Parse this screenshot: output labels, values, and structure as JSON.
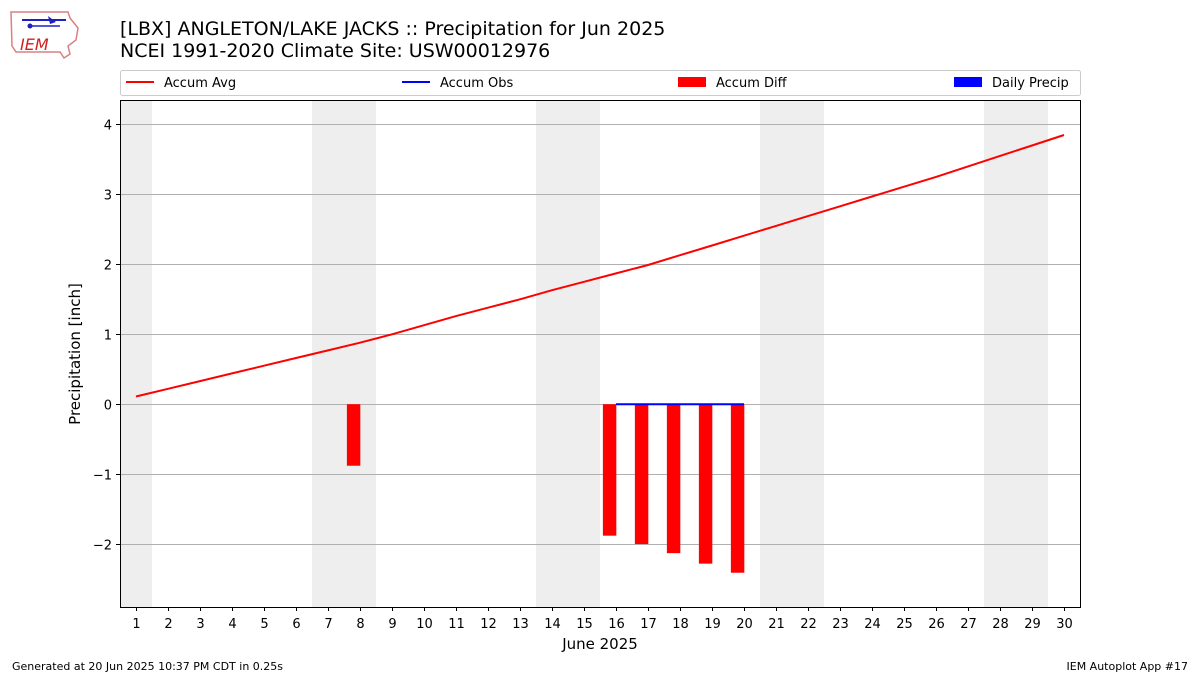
{
  "header": {
    "title_line1": "[LBX] ANGLETON/LAKE JACKS :: Precipitation for Jun 2025",
    "title_line2": "NCEI 1991-2020 Climate Site: USW00012976"
  },
  "logo": {
    "text": "IEM"
  },
  "footer": {
    "generated": "Generated at 20 Jun 2025 10:37 PM CDT in 0.25s",
    "app": "IEM Autoplot App #17"
  },
  "chart_data": {
    "type": "bar",
    "xlabel": "June 2025",
    "ylabel": "Precipitation [inch]",
    "xlim": [
      0.5,
      30.5
    ],
    "ylim": [
      -2.9,
      4.35
    ],
    "yticks": [
      4,
      3,
      2,
      1,
      0,
      -1,
      -2
    ],
    "ytick_labels": [
      "4",
      "3",
      "2",
      "1",
      "0",
      "−1",
      "−2"
    ],
    "xticks": [
      1,
      2,
      3,
      4,
      5,
      6,
      7,
      8,
      9,
      10,
      11,
      12,
      13,
      14,
      15,
      16,
      17,
      18,
      19,
      20,
      21,
      22,
      23,
      24,
      25,
      26,
      27,
      28,
      29,
      30
    ],
    "grid": "horizontal",
    "weekend_shading": [
      [
        0.5,
        1.5
      ],
      [
        6.5,
        8.5
      ],
      [
        13.5,
        15.5
      ],
      [
        20.5,
        22.5
      ],
      [
        27.5,
        29.5
      ]
    ],
    "legend": {
      "placement": "top",
      "entries": [
        {
          "label": "Accum Avg",
          "kind": "line",
          "color": "#ff0000"
        },
        {
          "label": "Accum Obs",
          "kind": "line",
          "color": "#0000ff"
        },
        {
          "label": "Accum Diff",
          "kind": "bar",
          "color": "#ff0000"
        },
        {
          "label": "Daily Precip",
          "kind": "bar",
          "color": "#0000ff"
        }
      ]
    },
    "series": [
      {
        "name": "Accum Avg",
        "type": "line",
        "color": "#ff0000",
        "x": [
          1,
          2,
          3,
          4,
          5,
          6,
          7,
          8,
          9,
          10,
          11,
          12,
          13,
          14,
          15,
          16,
          17,
          18,
          19,
          20,
          21,
          22,
          23,
          24,
          25,
          26,
          27,
          28,
          29,
          30
        ],
        "values": [
          0.11,
          0.22,
          0.33,
          0.44,
          0.55,
          0.66,
          0.77,
          0.88,
          1.0,
          1.13,
          1.26,
          1.38,
          1.5,
          1.63,
          1.75,
          1.87,
          1.99,
          2.13,
          2.27,
          2.41,
          2.55,
          2.69,
          2.83,
          2.97,
          3.11,
          3.25,
          3.4,
          3.55,
          3.7,
          3.85
        ]
      },
      {
        "name": "Accum Obs",
        "type": "line",
        "color": "#0000ff",
        "x": [
          16,
          17,
          18,
          19,
          20
        ],
        "values": [
          0,
          0,
          0,
          0,
          0
        ]
      },
      {
        "name": "Accum Diff",
        "type": "bar",
        "color": "#ff0000",
        "x": [
          7.8,
          15.8,
          16.8,
          17.8,
          18.8,
          19.8
        ],
        "values": [
          -0.88,
          -1.88,
          -2.0,
          -2.13,
          -2.28,
          -2.41
        ]
      },
      {
        "name": "Daily Precip",
        "type": "bar",
        "color": "#0000ff",
        "x": [],
        "values": []
      }
    ]
  }
}
